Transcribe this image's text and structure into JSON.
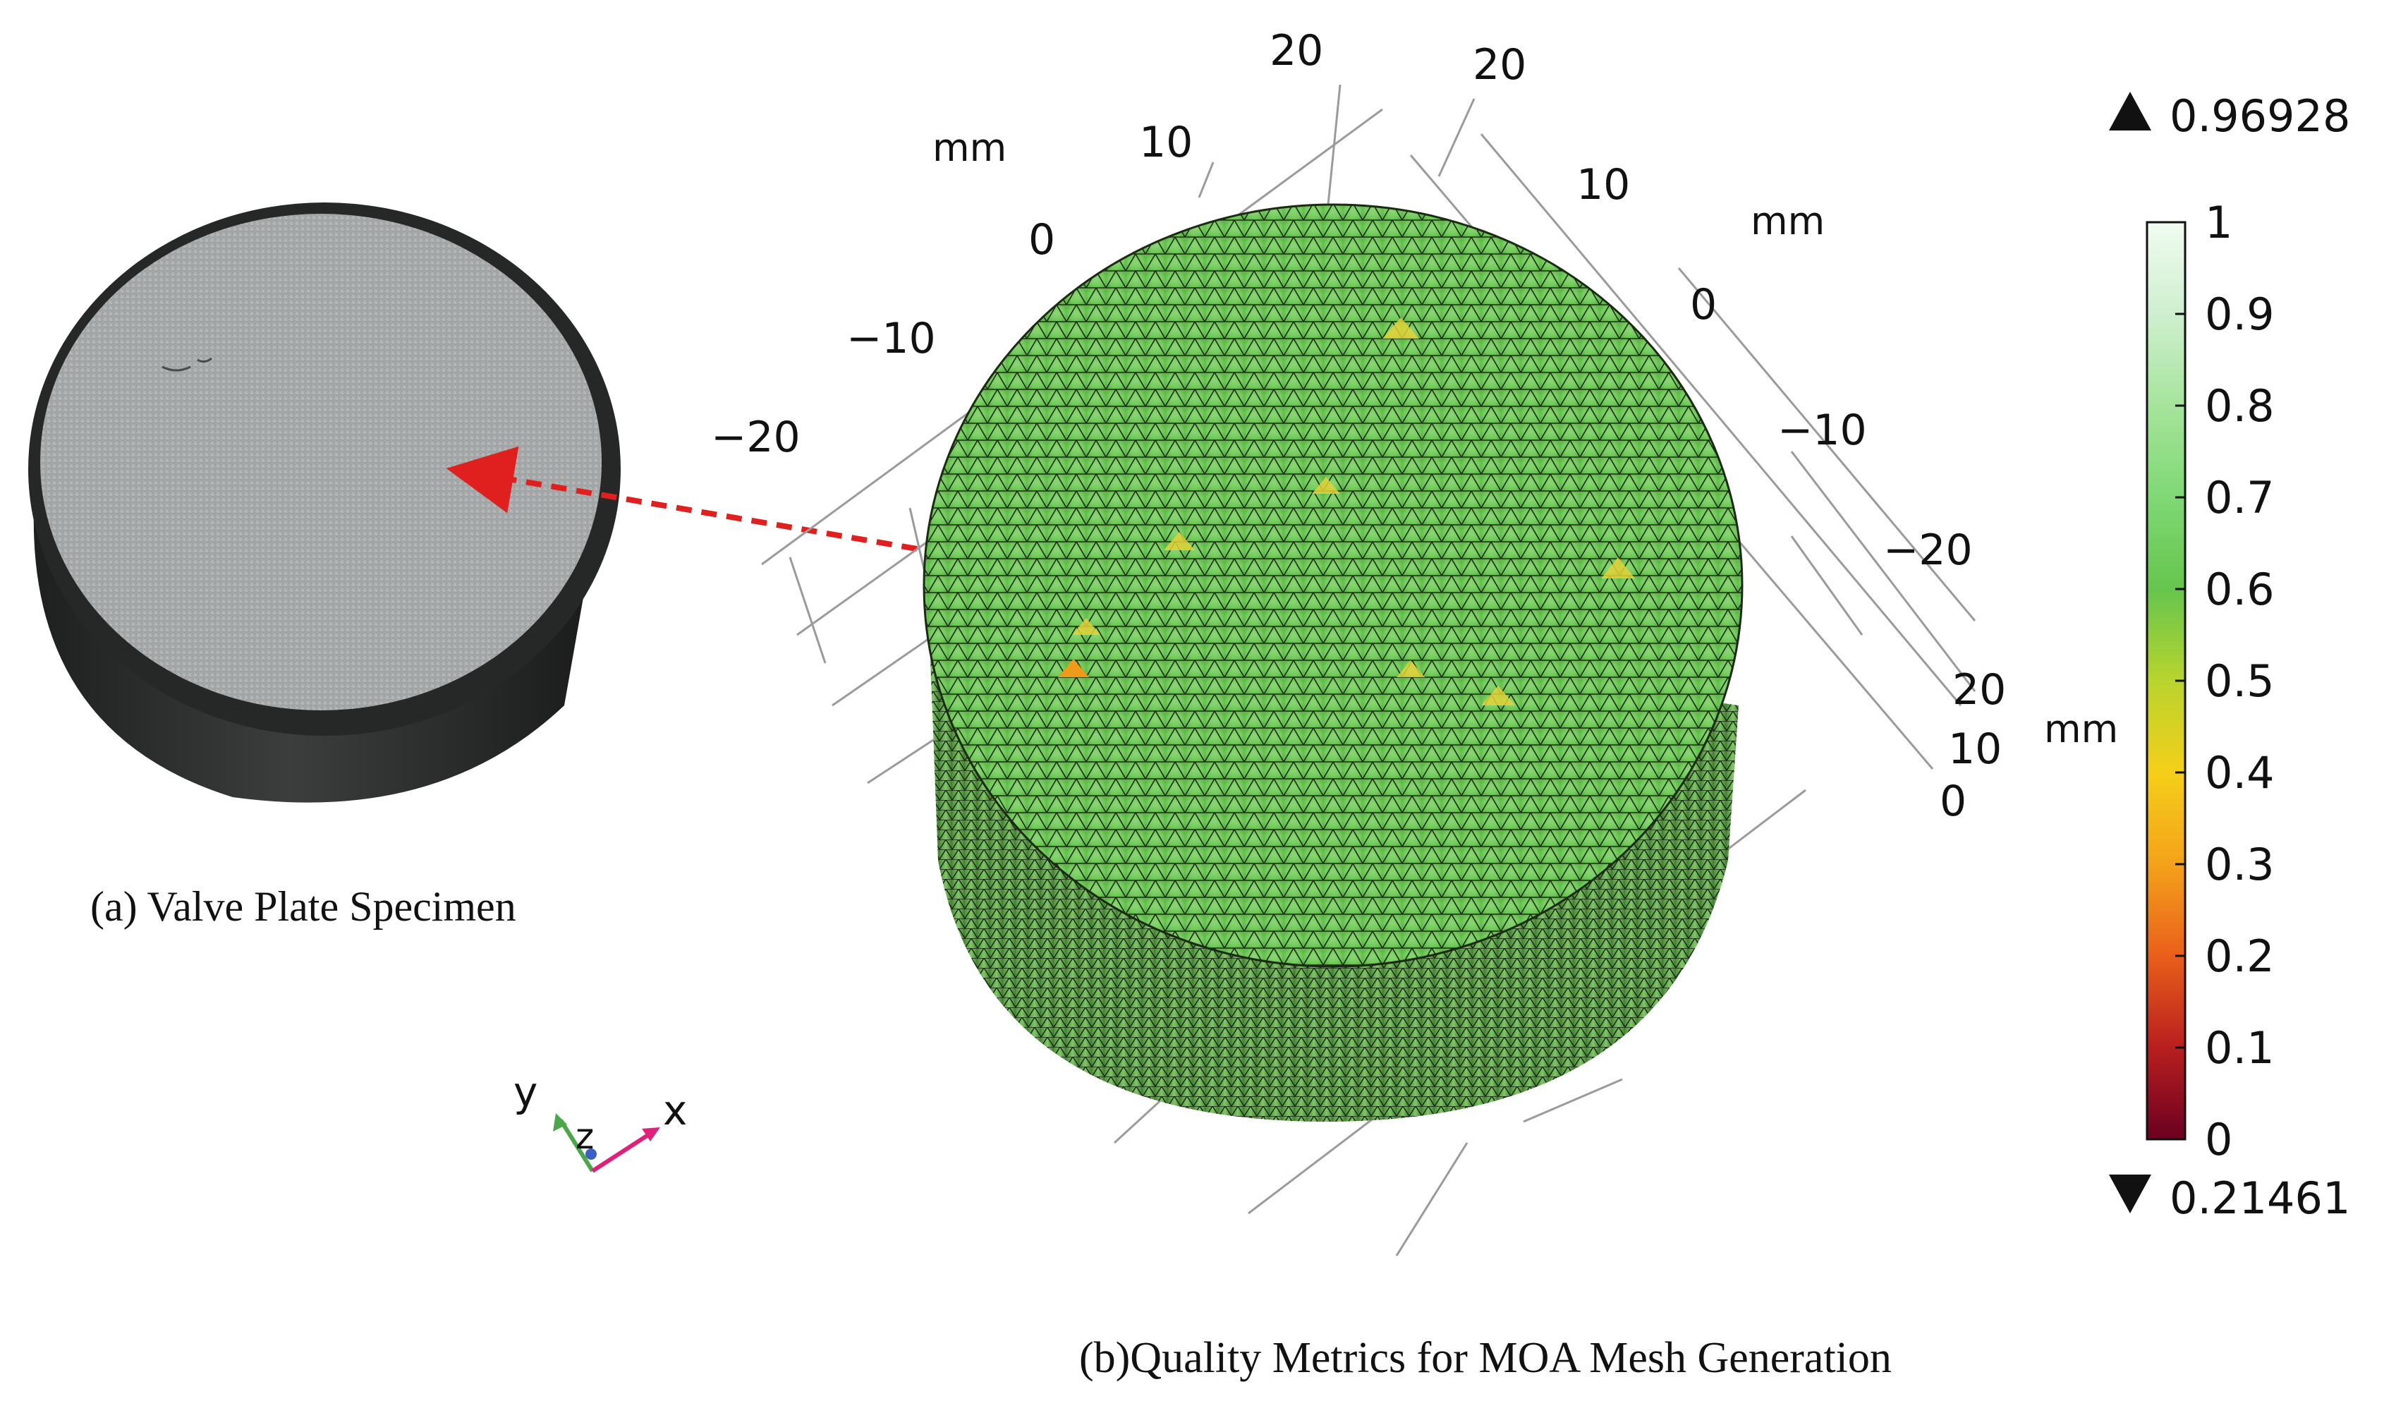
{
  "captions": {
    "a": "(a) Valve Plate Specimen",
    "b": "(b)Quality Metrics for MOA Mesh Generation"
  },
  "axes": {
    "unit": "mm",
    "left_ticks": [
      "20",
      "10",
      "0",
      "−10",
      "−20"
    ],
    "right_ticks": [
      "20",
      "10",
      "0",
      "−10",
      "−20"
    ],
    "vertical_ticks": [
      "20",
      "10",
      "0"
    ]
  },
  "colorbar": {
    "max_value": "0.96928",
    "min_value": "0.21461",
    "ticks": [
      "1",
      "0.9",
      "0.8",
      "0.7",
      "0.6",
      "0.5",
      "0.4",
      "0.3",
      "0.2",
      "0.1",
      "0"
    ],
    "colors": [
      "#f0fbf1",
      "#cfefcf",
      "#a6e49c",
      "#7fd874",
      "#66c54e",
      "#b8d42e",
      "#f5cf1a",
      "#f4a21a",
      "#e95f1a",
      "#b81f1f",
      "#6b0020"
    ]
  },
  "triad": {
    "y": "y",
    "z": "z",
    "x": "x"
  },
  "colors": {
    "arrow": "#e0201e",
    "mesh_fill": "#7fd06a",
    "mesh_line": "#1a2a14"
  }
}
